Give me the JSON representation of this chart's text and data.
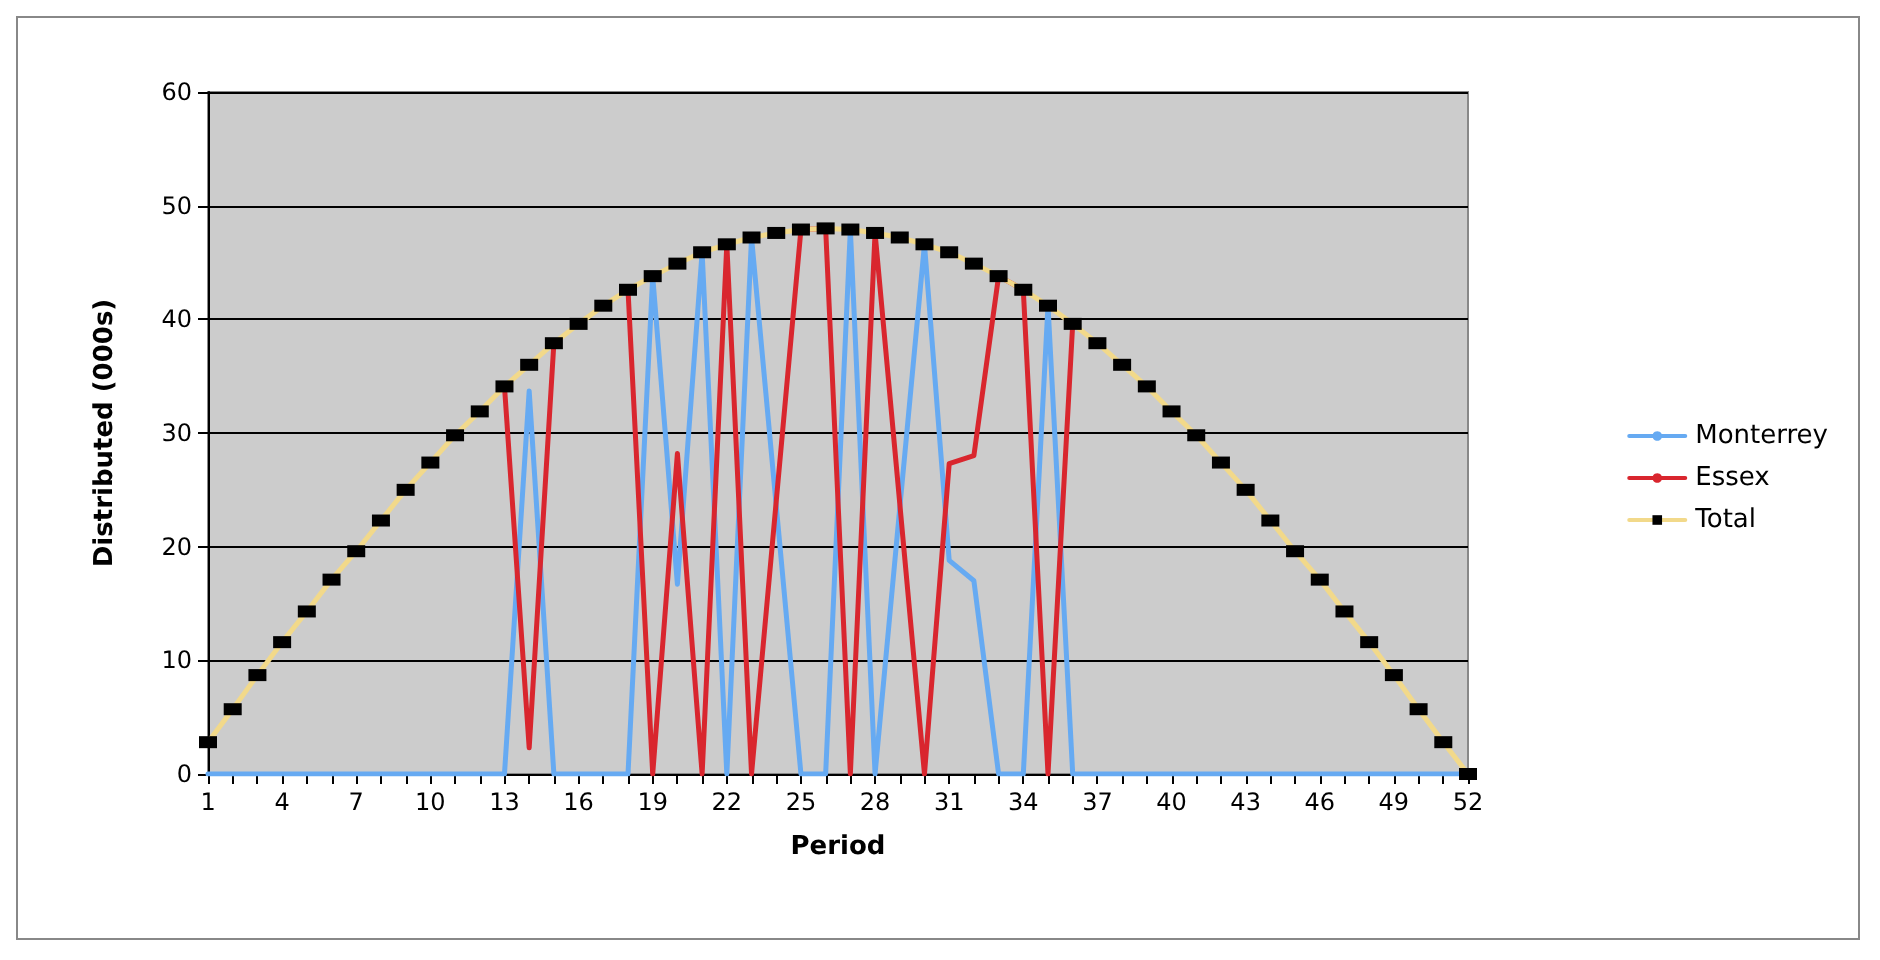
{
  "chart_data": {
    "type": "line",
    "xlabel": "Period",
    "ylabel": "Distributed (000s)",
    "categories": [
      "1",
      null,
      null,
      "4",
      null,
      null,
      "7",
      null,
      null,
      "10",
      null,
      null,
      "13",
      null,
      null,
      "16",
      null,
      null,
      "19",
      null,
      null,
      "22",
      null,
      null,
      "25",
      null,
      null,
      "28",
      null,
      null,
      "31",
      null,
      null,
      "34",
      null,
      null,
      "37",
      null,
      null,
      "40",
      null,
      null,
      "43",
      null,
      null,
      "46",
      null,
      null,
      "49",
      null,
      null,
      "52"
    ],
    "series": [
      {
        "name": "Monterrey",
        "color": "#66aaf2",
        "marker": "none",
        "values": [
          0,
          0,
          0,
          0,
          0,
          0,
          0,
          0,
          0,
          0,
          0,
          0,
          0,
          33.7,
          0,
          0,
          0,
          0,
          43.8,
          16.7,
          45.9,
          0,
          47.2,
          23.6,
          0,
          0,
          47.9,
          0,
          23.4,
          46.6,
          18.8,
          17.0,
          0,
          0,
          41.2,
          0,
          0,
          0,
          0,
          0,
          0,
          0,
          0,
          0,
          0,
          0,
          0,
          0,
          0,
          0,
          0,
          0
        ]
      },
      {
        "name": "Essex",
        "color": "#d9262e",
        "marker": "none",
        "values": [
          null,
          null,
          null,
          null,
          null,
          null,
          null,
          null,
          null,
          null,
          null,
          null,
          34.1,
          2.3,
          37.9,
          null,
          null,
          42.6,
          0,
          28.2,
          0,
          46.6,
          0,
          24.0,
          47.9,
          48,
          0,
          47.6,
          23.8,
          0,
          27.3,
          28.0,
          43.8,
          42.6,
          0,
          39.6,
          null,
          null,
          null,
          null,
          null,
          null,
          null,
          null,
          null,
          null,
          null,
          null,
          null,
          null,
          null,
          null
        ]
      },
      {
        "name": "Total",
        "color": "#f2d98a",
        "marker": "square",
        "colors": [
          "#000000",
          "#000000",
          "#000000",
          "#000000",
          "#000000",
          "#000000",
          "#000000",
          "#000000",
          "#000000",
          "#000000",
          "#000000",
          "#000000",
          "#000000",
          "#000000",
          "#000000",
          "#000000",
          "#000000",
          "#000000",
          "#000000",
          "#000000",
          "#000000",
          "#000000",
          "#000000",
          "#000000",
          "#000000",
          "#000000",
          "#000000",
          "#000000",
          "#000000",
          "#000000",
          "#000000",
          "#000000",
          "#000000",
          "#000000",
          "#000000",
          "#000000",
          "#000000",
          "#000000",
          "#000000",
          "#000000",
          "#000000",
          "#000000",
          "#000000",
          "#000000",
          "#000000",
          "#000000",
          "#000000",
          "#000000",
          "#000000",
          "#000000",
          "#000000",
          "#000000"
        ],
        "values": [
          2.8,
          5.7,
          8.7,
          11.6,
          14.3,
          17.1,
          19.6,
          22.3,
          25,
          27.4,
          29.8,
          31.9,
          34.1,
          36,
          37.9,
          39.6,
          41.2,
          42.6,
          43.8,
          44.9,
          45.9,
          46.6,
          47.2,
          47.6,
          47.9,
          48,
          47.9,
          47.6,
          47.2,
          46.6,
          45.9,
          44.9,
          43.8,
          42.6,
          41.2,
          39.6,
          37.9,
          36,
          34.1,
          31.9,
          29.8,
          27.4,
          25,
          22.3,
          19.6,
          17.1,
          14.3,
          11.6,
          8.7,
          5.7,
          2.8,
          0
        ]
      }
    ],
    "ylim": [
      0,
      60
    ],
    "yticks": [
      0,
      10,
      20,
      30,
      40,
      50,
      60
    ],
    "grid": "y",
    "legend": "right",
    "line_style": "solid"
  }
}
